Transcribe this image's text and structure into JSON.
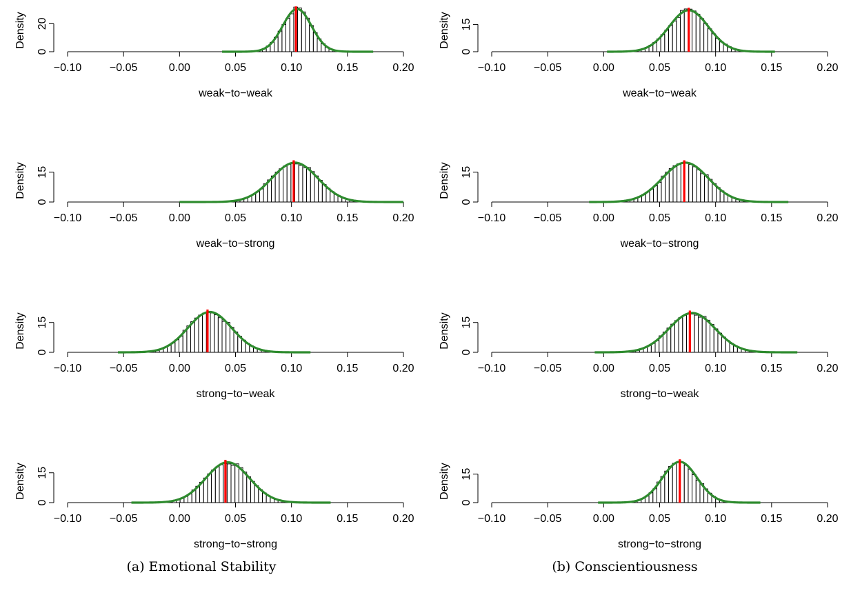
{
  "captions": [
    {
      "label": "(a) Emotional Stability"
    },
    {
      "label": "(b) Conscientiousness"
    }
  ],
  "colors": {
    "density_curve": "#2e8b2e",
    "estimate_line": "#ff0000",
    "bars": "#000000"
  },
  "chart_data": [
    {
      "type": "bar",
      "panel": "a",
      "xlabel": "weak−to−weak",
      "ylabel": "Density",
      "xlim": [
        -0.1,
        0.2
      ],
      "xticks": [
        "−0.10",
        "−0.05",
        "0.00",
        "0.05",
        "0.10",
        "0.15",
        "0.20"
      ],
      "yticks": [
        "0",
        "20"
      ],
      "yticks_values": [
        0,
        20
      ],
      "ylim": [
        0,
        30.5
      ],
      "density": {
        "mean": 0.105,
        "sd": 0.0128,
        "peak": 30.5,
        "range": [
          0.038,
          0.173
        ]
      },
      "hist_range": [
        0.06,
        0.15
      ],
      "estimate": 0.104
    },
    {
      "type": "bar",
      "panel": "b",
      "xlabel": "weak−to−weak",
      "ylabel": "Density",
      "xlim": [
        -0.1,
        0.2
      ],
      "xticks": [
        "−0.10",
        "−0.05",
        "0.00",
        "0.05",
        "0.10",
        "0.15",
        "0.20"
      ],
      "yticks": [
        "0",
        "15"
      ],
      "yticks_values": [
        0,
        15
      ],
      "ylim": [
        0,
        23.5
      ],
      "density": {
        "mean": 0.076,
        "sd": 0.0175,
        "peak": 22.8,
        "range": [
          0.003,
          0.153
        ]
      },
      "hist_range": [
        0.03,
        0.125
      ],
      "estimate": 0.076
    },
    {
      "type": "bar",
      "panel": "a",
      "xlabel": "weak−to−strong",
      "ylabel": "Density",
      "xlim": [
        -0.1,
        0.2
      ],
      "xticks": [
        "−0.10",
        "−0.05",
        "0.00",
        "0.05",
        "0.10",
        "0.15",
        "0.20"
      ],
      "yticks": [
        "0",
        "15"
      ],
      "yticks_values": [
        0,
        15
      ],
      "ylim": [
        0,
        21.5
      ],
      "density": {
        "mean": 0.103,
        "sd": 0.0205,
        "peak": 19.8,
        "range": [
          0.0,
          0.2
        ]
      },
      "hist_range": [
        0.04,
        0.165
      ],
      "estimate": 0.102
    },
    {
      "type": "bar",
      "panel": "b",
      "xlabel": "weak−to−strong",
      "ylabel": "Density",
      "xlim": [
        -0.1,
        0.2
      ],
      "xticks": [
        "−0.10",
        "−0.05",
        "0.00",
        "0.05",
        "0.10",
        "0.15",
        "0.20"
      ],
      "yticks": [
        "0",
        "15"
      ],
      "yticks_values": [
        0,
        15
      ],
      "ylim": [
        0,
        21.5
      ],
      "density": {
        "mean": 0.073,
        "sd": 0.0205,
        "peak": 19.8,
        "range": [
          -0.013,
          0.165
        ]
      },
      "hist_range": [
        0.02,
        0.13
      ],
      "estimate": 0.072
    },
    {
      "type": "bar",
      "panel": "a",
      "xlabel": "strong−to−weak",
      "ylabel": "Density",
      "xlim": [
        -0.1,
        0.2
      ],
      "xticks": [
        "−0.10",
        "−0.05",
        "0.00",
        "0.05",
        "0.10",
        "0.15",
        "0.20"
      ],
      "yticks": [
        "0",
        "15"
      ],
      "yticks_values": [
        0,
        15
      ],
      "ylim": [
        0,
        21.5
      ],
      "density": {
        "mean": 0.027,
        "sd": 0.0195,
        "peak": 20.3,
        "range": [
          -0.055,
          0.117
        ]
      },
      "hist_range": [
        -0.025,
        0.08
      ],
      "estimate": 0.025
    },
    {
      "type": "bar",
      "panel": "b",
      "xlabel": "strong−to−weak",
      "ylabel": "Density",
      "xlim": [
        -0.1,
        0.2
      ],
      "xticks": [
        "−0.10",
        "−0.05",
        "0.00",
        "0.05",
        "0.10",
        "0.15",
        "0.20"
      ],
      "yticks": [
        "0",
        "15"
      ],
      "yticks_values": [
        0,
        15
      ],
      "ylim": [
        0,
        21.5
      ],
      "density": {
        "mean": 0.079,
        "sd": 0.0205,
        "peak": 19.8,
        "range": [
          -0.008,
          0.173
        ]
      },
      "hist_range": [
        0.025,
        0.135
      ],
      "estimate": 0.077
    },
    {
      "type": "bar",
      "panel": "a",
      "xlabel": "strong−to−strong",
      "ylabel": "Density",
      "xlim": [
        -0.1,
        0.2
      ],
      "xticks": [
        "−0.10",
        "−0.05",
        "0.00",
        "0.05",
        "0.10",
        "0.15",
        "0.20"
      ],
      "yticks": [
        "0",
        "15"
      ],
      "yticks_values": [
        0,
        15
      ],
      "ylim": [
        0,
        21.5
      ],
      "density": {
        "mean": 0.043,
        "sd": 0.0195,
        "peak": 20.3,
        "range": [
          -0.043,
          0.135
        ]
      },
      "hist_range": [
        -0.01,
        0.095
      ],
      "estimate": 0.041
    },
    {
      "type": "bar",
      "panel": "b",
      "xlabel": "strong−to−strong",
      "ylabel": "Density",
      "xlim": [
        -0.1,
        0.2
      ],
      "xticks": [
        "−0.10",
        "−0.05",
        "0.00",
        "0.05",
        "0.10",
        "0.15",
        "0.20"
      ],
      "yticks": [
        "0",
        "15"
      ],
      "yticks_values": [
        0,
        15
      ],
      "ylim": [
        0,
        22.5
      ],
      "density": {
        "mean": 0.068,
        "sd": 0.0155,
        "peak": 21.5,
        "range": [
          -0.005,
          0.14
        ]
      },
      "hist_range": [
        0.03,
        0.11
      ],
      "estimate": 0.068
    }
  ]
}
